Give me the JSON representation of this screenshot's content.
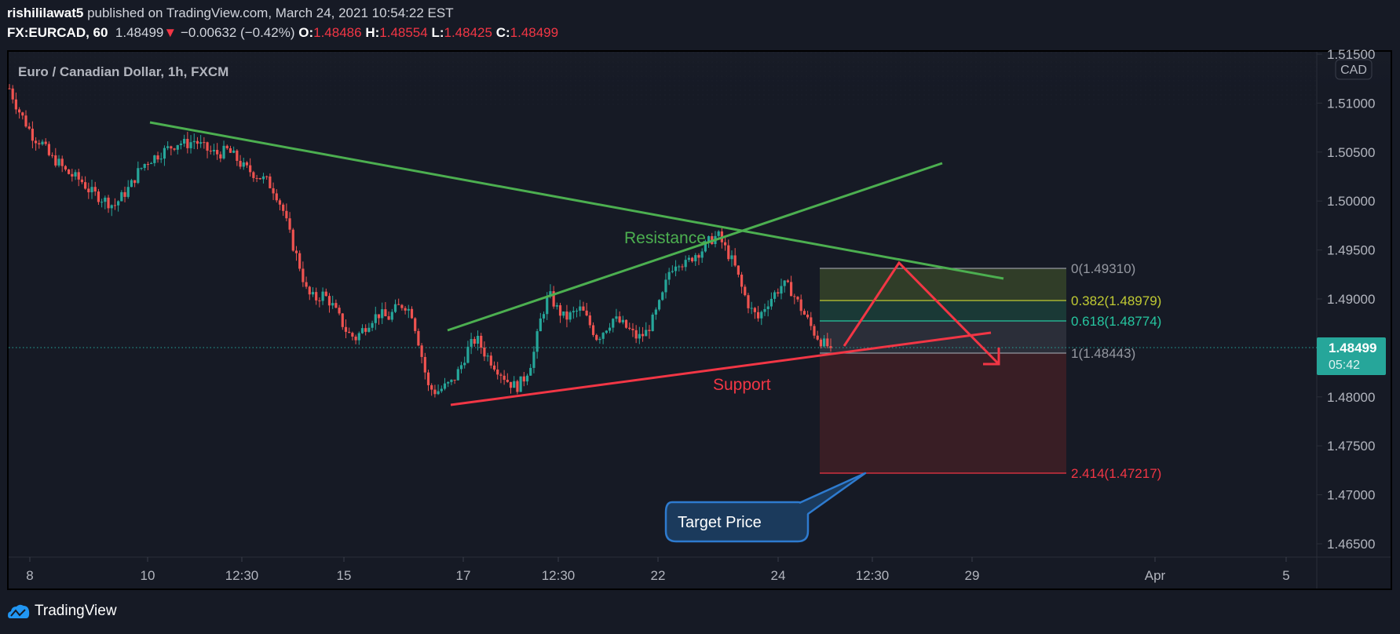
{
  "header": {
    "author": "rishililawat5",
    "published_text": "published on TradingView.com, March 24, 2021 10:54:22 EST",
    "symbol": "FX:EURCAD, 60",
    "last": "1.48499",
    "change_arrow": "▼",
    "change": "−0.00632 (−0.42%)",
    "o_label": "O:",
    "o": "1.48486",
    "h_label": "H:",
    "h": "1.48554",
    "l_label": "L:",
    "l": "1.48425",
    "c_label": "C:",
    "c": "1.48499"
  },
  "chart_title": "Euro / Canadian Dollar, 1h, FXCM",
  "currency_badge": "CAD",
  "price_tag": {
    "price": "1.48499",
    "countdown": "05:42",
    "color": "#26a69a"
  },
  "annotations": {
    "resistance": "Resistance",
    "support": "Support",
    "callout": "Target Price"
  },
  "fib_levels": [
    {
      "label": "0(1.49310)",
      "level": 0,
      "price": 1.4931,
      "color": "#9598a1"
    },
    {
      "label": "0.382(1.48979)",
      "level": 0.382,
      "price": 1.48979,
      "color": "#c0ca33"
    },
    {
      "label": "0.618(1.48774)",
      "level": 0.618,
      "price": 1.48774,
      "color": "#26c6a0"
    },
    {
      "label": "1(1.48443)",
      "level": 1,
      "price": 1.48443,
      "color": "#9598a1"
    },
    {
      "label": "2.414(1.47217)",
      "level": 2.414,
      "price": 1.47217,
      "color": "#f23645"
    }
  ],
  "footer": {
    "brand": "TradingView"
  },
  "colors": {
    "up": "#26a69a",
    "down": "#ef5350",
    "trend_green": "#4caf50",
    "trend_red": "#f23645",
    "callout_bg": "#1b3a5c",
    "callout_border": "#2e7bcf"
  },
  "chart_data": {
    "type": "candlestick",
    "title": "Euro / Canadian Dollar, 1h, FXCM",
    "symbol": "FX:EURCAD",
    "interval": "60",
    "xlabel": "",
    "ylabel": "CAD",
    "ylim": [
      1.463,
      1.516
    ],
    "y_ticks": [
      "1.51500",
      "1.51000",
      "1.50500",
      "1.50000",
      "1.49500",
      "1.49000",
      "1.48500",
      "1.48000",
      "1.47500",
      "1.47000",
      "1.46500"
    ],
    "x_ticks": [
      "8",
      "10",
      "12:30",
      "15",
      "17",
      "12:30",
      "22",
      "24",
      "12:30",
      "29",
      "Apr",
      "5"
    ],
    "grid": false,
    "last_price": 1.48499,
    "approx_close_path": [
      1.5115,
      1.5095,
      1.508,
      1.5065,
      1.506,
      1.5045,
      1.504,
      1.503,
      1.5025,
      1.502,
      1.501,
      1.5005,
      1.5,
      1.4995,
      1.5005,
      1.5015,
      1.503,
      1.504,
      1.5045,
      1.505,
      1.5055,
      1.506,
      1.5058,
      1.5062,
      1.5055,
      1.505,
      1.5048,
      1.5052,
      1.5045,
      1.5035,
      1.503,
      1.5025,
      1.502,
      1.501,
      1.499,
      1.496,
      1.4935,
      1.4905,
      1.49,
      1.4905,
      1.4895,
      1.488,
      1.4865,
      1.486,
      1.487,
      1.488,
      1.4885,
      1.488,
      1.489,
      1.4895,
      1.4885,
      1.485,
      1.481,
      1.4805,
      1.481,
      1.4815,
      1.483,
      1.485,
      1.486,
      1.4845,
      1.4835,
      1.4825,
      1.4815,
      1.481,
      1.482,
      1.484,
      1.488,
      1.4905,
      1.489,
      1.488,
      1.4885,
      1.489,
      1.4875,
      1.486,
      1.487,
      1.488,
      1.4875,
      1.4868,
      1.486,
      1.4865,
      1.488,
      1.49,
      1.493,
      1.494,
      1.4935,
      1.4945,
      1.495,
      1.496,
      1.4965,
      1.495,
      1.4935,
      1.491,
      1.489,
      1.488,
      1.4895,
      1.4905,
      1.4915,
      1.491,
      1.4895,
      1.488,
      1.4865,
      1.4855,
      1.485
    ],
    "trendlines": [
      {
        "name": "Resistance (descending)",
        "color": "#4caf50",
        "from": [
          "Mar 10",
          1.5085
        ],
        "to": [
          "Mar 29",
          1.4922
        ]
      },
      {
        "name": "Rising wedge top",
        "color": "#4caf50",
        "from": [
          "Mar 16",
          1.4868
        ],
        "to": [
          "Mar 26",
          1.5039
        ]
      },
      {
        "name": "Support",
        "color": "#f23645",
        "from": [
          "Mar 16",
          1.4792
        ],
        "to": [
          "Mar 26",
          1.4866
        ]
      }
    ],
    "fibonacci": [
      {
        "level": 0,
        "price": 1.4931
      },
      {
        "level": 0.382,
        "price": 1.48979
      },
      {
        "level": 0.618,
        "price": 1.48774
      },
      {
        "level": 1,
        "price": 1.48443
      },
      {
        "level": 2.414,
        "price": 1.47217
      }
    ],
    "annotations": [
      "Resistance",
      "Support",
      "Target Price"
    ]
  }
}
